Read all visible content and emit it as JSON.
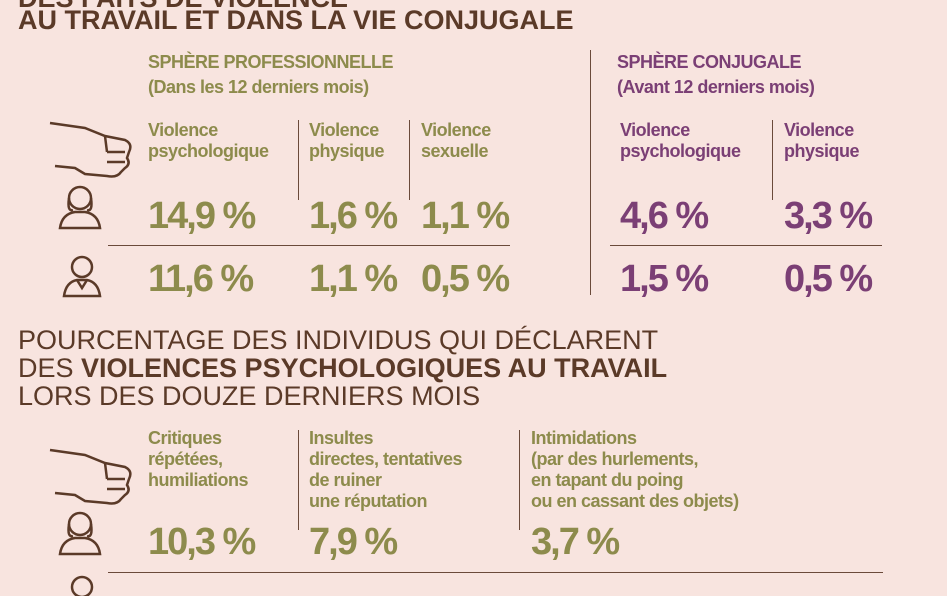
{
  "header": {
    "title_line1": "DES FAITS DE VIOLENCE",
    "title_line2": {
      "a": "AU ",
      "b": "TRAVAIL",
      "c": " ET ",
      "d": "DANS LA VIE CONJUGALE"
    }
  },
  "professional": {
    "title": "SPHÈRE PROFESSIONNELLE",
    "period": "(Dans les 12 derniers mois)",
    "columns": [
      [
        "Violence",
        "psychologique"
      ],
      [
        "Violence",
        "physique"
      ],
      [
        "Violence",
        "sexuelle"
      ]
    ],
    "women": [
      "14,9 %",
      "1,6 %",
      "1,1 %"
    ],
    "men": [
      "11,6 %",
      "1,1 %",
      "0,5 %"
    ]
  },
  "conjugal": {
    "title": "SPHÈRE CONJUGALE",
    "period": "(Avant 12 derniers mois)",
    "columns": [
      [
        "Violence",
        "psychologique"
      ],
      [
        "Violence",
        "physique"
      ]
    ],
    "women": [
      "4,6 %",
      "3,3 %"
    ],
    "men": [
      "1,5 %",
      "0,5 %"
    ]
  },
  "section2": {
    "title_line1": "POURCENTAGE DES INDIVIDUS QUI DÉCLARENT",
    "title_line2a": "DES ",
    "title_line2b": "VIOLENCES PSYCHOLOGIQUES AU TRAVAIL",
    "title_line3": "LORS DES DOUZE DERNIERS MOIS",
    "columns": [
      [
        "Critiques",
        "répétées,",
        "humiliations"
      ],
      [
        "Insultes",
        "directes, tentatives",
        "de ruiner",
        "une réputation"
      ],
      [
        "Intimidations",
        "(par des hurlements,",
        "en tapant du poing",
        "ou en cassant des objets)"
      ]
    ],
    "women": [
      "10,3 %",
      "7,9 %",
      "3,7 %"
    ]
  }
}
